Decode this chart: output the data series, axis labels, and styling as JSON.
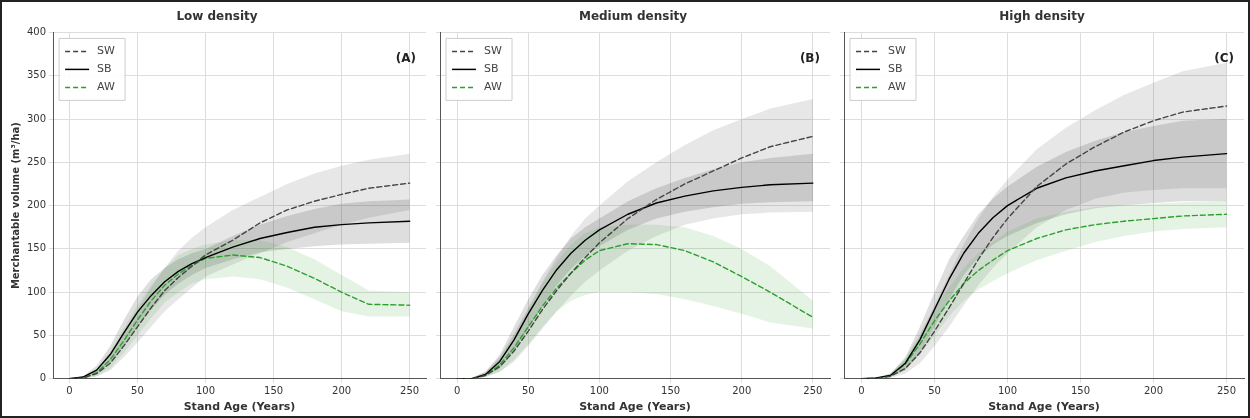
{
  "chart_data": [
    {
      "type": "line",
      "title": "Low density",
      "xlabel": "Stand Age (Years)",
      "ylabel": "Merchantable volume (m³/ha)",
      "annotations": [
        "(A)"
      ],
      "xlim": [
        -12,
        262
      ],
      "ylim": [
        0,
        400
      ],
      "xticks": [
        0,
        50,
        100,
        150,
        200,
        250
      ],
      "yticks": [
        0,
        50,
        100,
        150,
        200,
        250,
        300,
        350,
        400
      ],
      "grid": true,
      "legend": "top left",
      "marker": "none",
      "x": [
        0,
        10,
        20,
        30,
        40,
        50,
        60,
        70,
        80,
        90,
        100,
        120,
        140,
        160,
        180,
        200,
        220,
        250
      ],
      "series": [
        {
          "name": "SW",
          "color": "#444444",
          "line_style": "dashed",
          "values": [
            0,
            1,
            6,
            18,
            38,
            60,
            82,
            102,
            117,
            130,
            143,
            160,
            180,
            195,
            205,
            213,
            220,
            226
          ],
          "lower": [
            0,
            0,
            3,
            10,
            25,
            42,
            60,
            78,
            92,
            105,
            118,
            132,
            145,
            158,
            168,
            178,
            186,
            195
          ],
          "upper": [
            0,
            2,
            10,
            30,
            55,
            80,
            105,
            128,
            148,
            163,
            175,
            195,
            210,
            225,
            237,
            246,
            253,
            260
          ]
        },
        {
          "name": "SB",
          "color": "#000000",
          "line_style": "solid",
          "values": [
            0,
            2,
            10,
            28,
            53,
            77,
            96,
            112,
            124,
            133,
            140,
            152,
            162,
            169,
            175,
            178,
            180,
            182
          ],
          "lower": [
            0,
            1,
            6,
            18,
            38,
            60,
            80,
            97,
            110,
            120,
            128,
            138,
            146,
            150,
            153,
            155,
            156,
            157
          ],
          "upper": [
            0,
            3,
            15,
            38,
            68,
            95,
            115,
            128,
            138,
            145,
            150,
            165,
            178,
            188,
            196,
            202,
            205,
            207
          ]
        },
        {
          "name": "AW",
          "color": "#2ca02c",
          "line_style": "dashed",
          "values": [
            0,
            1,
            7,
            22,
            44,
            68,
            90,
            108,
            121,
            131,
            139,
            143,
            140,
            130,
            116,
            100,
            86,
            85
          ],
          "lower": [
            0,
            0,
            3,
            12,
            30,
            50,
            70,
            88,
            100,
            110,
            115,
            118,
            115,
            105,
            92,
            78,
            72,
            72
          ],
          "upper": [
            0,
            2,
            12,
            32,
            58,
            85,
            108,
            128,
            143,
            150,
            155,
            160,
            160,
            152,
            138,
            120,
            102,
            100
          ]
        }
      ]
    },
    {
      "type": "line",
      "title": "Medium density",
      "xlabel": "Stand Age (Years)",
      "annotations": [
        "(B)"
      ],
      "xlim": [
        -12,
        262
      ],
      "ylim": [
        0,
        400
      ],
      "xticks": [
        0,
        50,
        100,
        150,
        200,
        250
      ],
      "yticks": [
        0,
        50,
        100,
        150,
        200,
        250,
        300,
        350,
        400
      ],
      "tick_labels": "x",
      "grid": true,
      "legend": "top left",
      "marker": "none",
      "x": [
        0,
        10,
        20,
        30,
        40,
        50,
        60,
        70,
        80,
        90,
        100,
        120,
        140,
        160,
        180,
        200,
        220,
        250
      ],
      "series": [
        {
          "name": "SW",
          "color": "#444444",
          "line_style": "dashed",
          "values": [
            0,
            0,
            4,
            14,
            32,
            55,
            80,
            102,
            122,
            140,
            157,
            185,
            207,
            225,
            240,
            255,
            268,
            280
          ],
          "lower": [
            0,
            0,
            2,
            8,
            20,
            38,
            58,
            78,
            96,
            112,
            125,
            148,
            165,
            178,
            185,
            190,
            192,
            193
          ],
          "upper": [
            0,
            1,
            8,
            25,
            52,
            82,
            112,
            140,
            165,
            185,
            200,
            228,
            250,
            270,
            287,
            300,
            312,
            323
          ]
        },
        {
          "name": "SB",
          "color": "#000000",
          "line_style": "solid",
          "values": [
            0,
            0,
            5,
            20,
            45,
            75,
            102,
            126,
            145,
            160,
            172,
            190,
            203,
            211,
            217,
            221,
            224,
            226
          ],
          "lower": [
            0,
            0,
            3,
            12,
            32,
            58,
            84,
            108,
            127,
            142,
            153,
            172,
            185,
            193,
            198,
            202,
            204,
            205
          ],
          "upper": [
            0,
            1,
            8,
            28,
            60,
            92,
            120,
            143,
            162,
            175,
            185,
            205,
            220,
            232,
            242,
            250,
            255,
            260
          ]
        },
        {
          "name": "AW",
          "color": "#2ca02c",
          "line_style": "dashed",
          "values": [
            0,
            0,
            4,
            16,
            36,
            60,
            84,
            105,
            122,
            137,
            148,
            156,
            155,
            148,
            135,
            118,
            100,
            71
          ],
          "lower": [
            0,
            0,
            2,
            8,
            22,
            40,
            60,
            78,
            90,
            97,
            100,
            100,
            98,
            92,
            84,
            75,
            65,
            58
          ],
          "upper": [
            0,
            1,
            7,
            25,
            50,
            80,
            110,
            135,
            155,
            168,
            175,
            178,
            178,
            175,
            165,
            150,
            130,
            90
          ]
        }
      ]
    },
    {
      "type": "line",
      "title": "High density",
      "xlabel": "Stand Age (Years)",
      "annotations": [
        "(C)"
      ],
      "xlim": [
        -12,
        262
      ],
      "ylim": [
        0,
        400
      ],
      "xticks": [
        0,
        50,
        100,
        150,
        200,
        250
      ],
      "yticks": [
        0,
        50,
        100,
        150,
        200,
        250,
        300,
        350,
        400
      ],
      "tick_labels": "x",
      "grid": true,
      "legend": "top left",
      "marker": "none",
      "x": [
        0,
        10,
        20,
        30,
        40,
        50,
        60,
        70,
        80,
        90,
        100,
        120,
        140,
        160,
        180,
        200,
        220,
        250
      ],
      "series": [
        {
          "name": "SW",
          "color": "#444444",
          "line_style": "dashed",
          "values": [
            0,
            0,
            3,
            12,
            30,
            55,
            82,
            110,
            138,
            163,
            185,
            222,
            248,
            268,
            285,
            298,
            308,
            315
          ],
          "lower": [
            0,
            0,
            1,
            6,
            18,
            38,
            60,
            85,
            108,
            128,
            145,
            175,
            195,
            208,
            215,
            218,
            220,
            220
          ],
          "upper": [
            0,
            1,
            6,
            22,
            50,
            85,
            120,
            155,
            185,
            210,
            230,
            265,
            290,
            310,
            328,
            342,
            355,
            365
          ]
        },
        {
          "name": "SB",
          "color": "#000000",
          "line_style": "solid",
          "values": [
            0,
            1,
            4,
            18,
            45,
            80,
            115,
            145,
            168,
            186,
            200,
            220,
            232,
            240,
            246,
            252,
            256,
            260
          ],
          "lower": [
            0,
            0,
            2,
            10,
            30,
            60,
            92,
            120,
            140,
            155,
            165,
            180,
            190,
            197,
            200,
            203,
            205,
            205
          ],
          "upper": [
            0,
            1,
            6,
            25,
            60,
            100,
            138,
            165,
            190,
            208,
            222,
            245,
            262,
            275,
            285,
            292,
            298,
            300
          ]
        },
        {
          "name": "AW",
          "color": "#2ca02c",
          "line_style": "dashed",
          "values": [
            0,
            0,
            4,
            17,
            40,
            67,
            90,
            110,
            125,
            137,
            148,
            162,
            172,
            178,
            182,
            185,
            188,
            190
          ],
          "lower": [
            0,
            0,
            2,
            10,
            28,
            50,
            72,
            90,
            103,
            113,
            122,
            137,
            148,
            158,
            165,
            170,
            173,
            175
          ],
          "upper": [
            0,
            1,
            6,
            24,
            52,
            82,
            105,
            128,
            145,
            158,
            170,
            185,
            193,
            198,
            200,
            202,
            204,
            205
          ]
        }
      ]
    }
  ]
}
